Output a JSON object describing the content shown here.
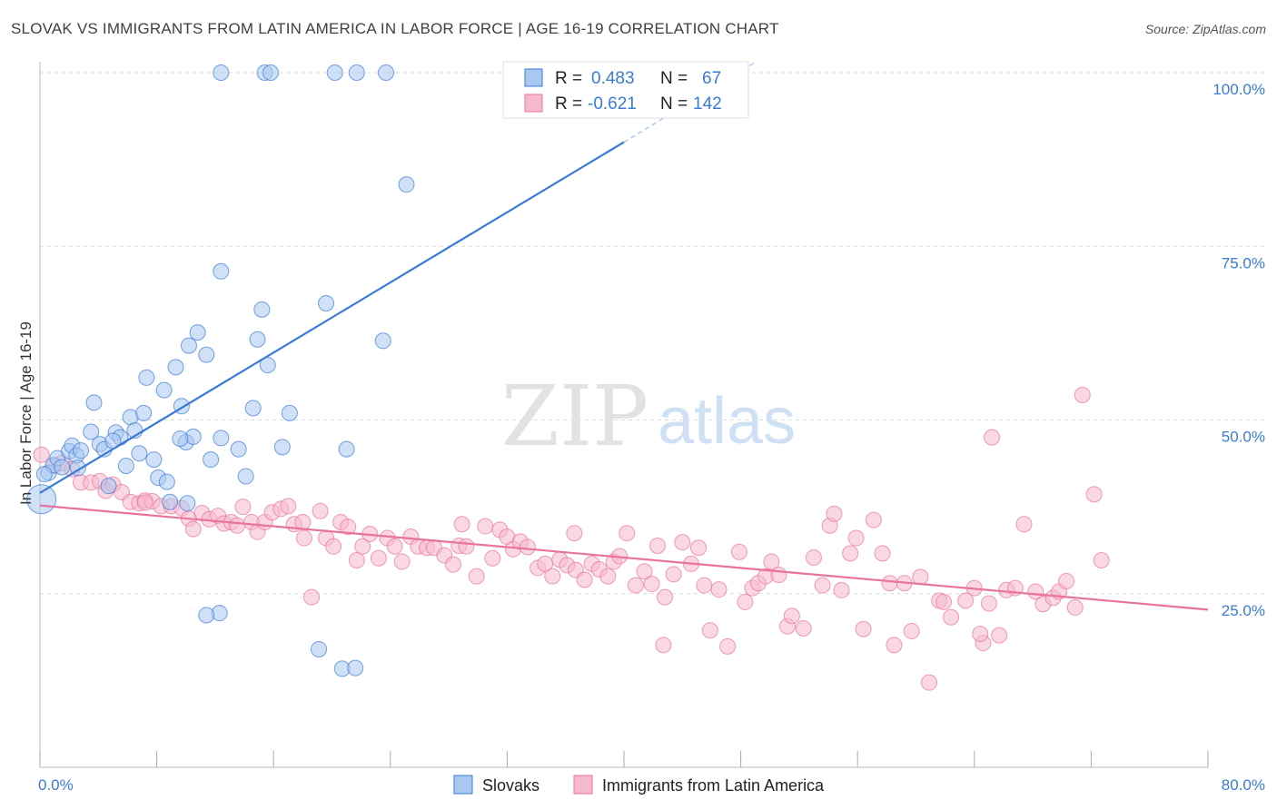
{
  "title": "SLOVAK VS IMMIGRANTS FROM LATIN AMERICA IN LABOR FORCE | AGE 16-19 CORRELATION CHART",
  "source": "Source: ZipAtlas.com",
  "watermark": {
    "zip": "ZIP",
    "atlas": "atlas"
  },
  "colors": {
    "blue": "#3a7bd5",
    "blue_fill": "#a9c8f0",
    "pink": "#e8739c",
    "pink_fill": "#f6b8cc",
    "grid": "#dcdcdc"
  },
  "chart_data": {
    "type": "scatter",
    "title": "SLOVAK VS IMMIGRANTS FROM LATIN AMERICA IN LABOR FORCE | AGE 16-19 CORRELATION CHART",
    "xlabel": "",
    "ylabel": "In Labor Force | Age 16-19",
    "xlim": [
      0,
      80
    ],
    "ylim": [
      0,
      105
    ],
    "x_tick_labels": [
      "0.0%",
      "80.0%"
    ],
    "y_ticks": [
      25,
      50,
      75,
      100
    ],
    "y_tick_labels": [
      "25.0%",
      "50.0%",
      "75.0%",
      "100.0%"
    ],
    "grid": true,
    "legend": {
      "placement": "top-center",
      "entries": [
        {
          "r_label": "R =",
          "r_value": "0.483",
          "n_label": "N =",
          "n_value": "67"
        },
        {
          "r_label": "R =",
          "r_value": "-0.621",
          "n_label": "N =",
          "n_value": "142"
        }
      ]
    },
    "series": [
      {
        "name": "Slovaks",
        "color": "#3a7bd5",
        "trend": {
          "x": [
            0,
            40
          ],
          "y": [
            39.5,
            90.0
          ],
          "dashed_to": [
            49,
            101.5
          ]
        },
        "points": [
          [
            0.1,
            38.6
          ],
          [
            0.6,
            42.4
          ],
          [
            0.9,
            43.5
          ],
          [
            1.2,
            44.5
          ],
          [
            1.5,
            43.2
          ],
          [
            2.0,
            45.5
          ],
          [
            2.2,
            46.3
          ],
          [
            2.5,
            44.9
          ],
          [
            2.8,
            45.6
          ],
          [
            3.5,
            48.3
          ],
          [
            3.7,
            52.5
          ],
          [
            4.1,
            46.5
          ],
          [
            4.4,
            45.8
          ],
          [
            4.7,
            40.5
          ],
          [
            5.2,
            48.2
          ],
          [
            5.5,
            47.5
          ],
          [
            6.2,
            50.4
          ],
          [
            5.9,
            43.4
          ],
          [
            6.5,
            48.5
          ],
          [
            6.8,
            45.2
          ],
          [
            7.1,
            51.0
          ],
          [
            7.3,
            56.1
          ],
          [
            7.8,
            44.3
          ],
          [
            8.1,
            41.7
          ],
          [
            8.5,
            54.3
          ],
          [
            8.7,
            41.1
          ],
          [
            8.9,
            38.2
          ],
          [
            9.3,
            57.6
          ],
          [
            9.7,
            52.0
          ],
          [
            10.0,
            46.8
          ],
          [
            10.2,
            60.7
          ],
          [
            10.5,
            47.6
          ],
          [
            10.8,
            62.6
          ],
          [
            11.4,
            59.4
          ],
          [
            11.7,
            44.3
          ],
          [
            12.4,
            71.4
          ],
          [
            12.3,
            22.2
          ],
          [
            13.6,
            45.8
          ],
          [
            14.1,
            41.9
          ],
          [
            14.6,
            51.7
          ],
          [
            14.9,
            61.6
          ],
          [
            15.2,
            65.9
          ],
          [
            15.6,
            57.9
          ],
          [
            16.6,
            46.1
          ],
          [
            17.1,
            51.0
          ],
          [
            11.4,
            21.9
          ],
          [
            19.6,
            66.8
          ],
          [
            19.1,
            17.0
          ],
          [
            20.7,
            14.2
          ],
          [
            21.0,
            45.8
          ],
          [
            21.6,
            14.3
          ],
          [
            23.5,
            61.4
          ],
          [
            25.1,
            83.9
          ],
          [
            12.4,
            100.0
          ],
          [
            15.4,
            100.0
          ],
          [
            15.8,
            100.0
          ],
          [
            20.2,
            100.0
          ],
          [
            21.7,
            100.0
          ],
          [
            23.7,
            100.0
          ],
          [
            38.1,
            94.6
          ],
          [
            38.7,
            100.0
          ],
          [
            9.6,
            47.3
          ],
          [
            2.6,
            43.1
          ],
          [
            0.3,
            42.2
          ],
          [
            12.4,
            47.4
          ],
          [
            10.1,
            38.0
          ],
          [
            5.0,
            47.0
          ]
        ]
      },
      {
        "name": "Immigrants from Latin America",
        "color": "#e8739c",
        "trend": {
          "x": [
            0,
            80
          ],
          "y": [
            37.7,
            22.7
          ]
        },
        "points": [
          [
            0.1,
            45.0
          ],
          [
            1.0,
            43.4
          ],
          [
            1.5,
            43.8
          ],
          [
            2.2,
            42.9
          ],
          [
            2.8,
            41.0
          ],
          [
            3.5,
            41.0
          ],
          [
            4.1,
            41.2
          ],
          [
            4.5,
            39.8
          ],
          [
            5.0,
            40.7
          ],
          [
            5.6,
            39.6
          ],
          [
            6.2,
            38.2
          ],
          [
            6.8,
            38.0
          ],
          [
            7.2,
            38.4
          ],
          [
            7.7,
            38.3
          ],
          [
            8.3,
            37.6
          ],
          [
            9.0,
            37.6
          ],
          [
            9.7,
            37.3
          ],
          [
            10.2,
            35.8
          ],
          [
            10.5,
            34.3
          ],
          [
            11.1,
            36.6
          ],
          [
            11.6,
            35.7
          ],
          [
            12.2,
            36.2
          ],
          [
            12.6,
            35.1
          ],
          [
            13.1,
            35.3
          ],
          [
            13.5,
            34.8
          ],
          [
            13.9,
            37.5
          ],
          [
            14.5,
            35.3
          ],
          [
            14.9,
            33.9
          ],
          [
            15.4,
            35.3
          ],
          [
            15.9,
            36.7
          ],
          [
            16.5,
            37.2
          ],
          [
            17.0,
            37.6
          ],
          [
            17.4,
            35.0
          ],
          [
            18.0,
            35.3
          ],
          [
            18.6,
            24.5
          ],
          [
            19.2,
            36.9
          ],
          [
            19.6,
            33.0
          ],
          [
            20.1,
            31.8
          ],
          [
            20.6,
            35.3
          ],
          [
            21.1,
            34.6
          ],
          [
            21.7,
            29.8
          ],
          [
            22.1,
            31.8
          ],
          [
            22.6,
            33.6
          ],
          [
            23.2,
            30.1
          ],
          [
            23.8,
            33.0
          ],
          [
            24.3,
            31.8
          ],
          [
            24.8,
            29.6
          ],
          [
            25.4,
            33.2
          ],
          [
            25.9,
            31.8
          ],
          [
            26.5,
            31.6
          ],
          [
            27.0,
            31.6
          ],
          [
            27.7,
            30.5
          ],
          [
            28.3,
            29.2
          ],
          [
            28.7,
            31.9
          ],
          [
            29.2,
            31.8
          ],
          [
            29.9,
            27.5
          ],
          [
            30.5,
            34.7
          ],
          [
            31.0,
            30.1
          ],
          [
            31.5,
            34.2
          ],
          [
            32.0,
            33.2
          ],
          [
            32.4,
            31.4
          ],
          [
            32.9,
            32.5
          ],
          [
            33.4,
            31.7
          ],
          [
            34.1,
            28.7
          ],
          [
            34.6,
            29.3
          ],
          [
            35.1,
            27.5
          ],
          [
            35.6,
            29.9
          ],
          [
            36.1,
            29.1
          ],
          [
            36.7,
            28.4
          ],
          [
            37.3,
            27.0
          ],
          [
            37.8,
            29.3
          ],
          [
            38.3,
            28.5
          ],
          [
            38.9,
            27.5
          ],
          [
            39.3,
            29.6
          ],
          [
            39.7,
            30.4
          ],
          [
            40.2,
            33.7
          ],
          [
            40.8,
            26.2
          ],
          [
            41.4,
            28.2
          ],
          [
            41.9,
            26.4
          ],
          [
            42.3,
            31.9
          ],
          [
            42.8,
            24.5
          ],
          [
            43.4,
            27.8
          ],
          [
            44.0,
            32.4
          ],
          [
            44.6,
            29.3
          ],
          [
            45.1,
            31.6
          ],
          [
            45.5,
            26.2
          ],
          [
            45.9,
            19.7
          ],
          [
            46.5,
            25.6
          ],
          [
            47.1,
            17.4
          ],
          [
            47.9,
            31.0
          ],
          [
            48.3,
            23.8
          ],
          [
            48.8,
            25.8
          ],
          [
            49.2,
            26.5
          ],
          [
            49.7,
            27.5
          ],
          [
            50.1,
            29.6
          ],
          [
            50.6,
            27.7
          ],
          [
            51.2,
            20.3
          ],
          [
            51.5,
            21.8
          ],
          [
            52.3,
            20.0
          ],
          [
            53.0,
            30.2
          ],
          [
            53.6,
            26.2
          ],
          [
            54.1,
            34.8
          ],
          [
            54.4,
            36.5
          ],
          [
            54.9,
            25.5
          ],
          [
            55.5,
            30.8
          ],
          [
            55.9,
            33.0
          ],
          [
            56.4,
            19.9
          ],
          [
            57.1,
            35.6
          ],
          [
            57.7,
            30.8
          ],
          [
            58.2,
            26.5
          ],
          [
            58.5,
            17.6
          ],
          [
            59.2,
            26.5
          ],
          [
            59.7,
            19.6
          ],
          [
            60.3,
            27.4
          ],
          [
            60.9,
            12.2
          ],
          [
            61.6,
            24.0
          ],
          [
            61.9,
            23.8
          ],
          [
            62.4,
            21.6
          ],
          [
            63.4,
            24.0
          ],
          [
            64.0,
            25.8
          ],
          [
            64.6,
            17.9
          ],
          [
            65.0,
            23.6
          ],
          [
            65.7,
            19.0
          ],
          [
            66.2,
            25.5
          ],
          [
            66.8,
            25.8
          ],
          [
            67.4,
            35.0
          ],
          [
            68.2,
            25.3
          ],
          [
            68.7,
            23.5
          ],
          [
            69.4,
            24.4
          ],
          [
            69.8,
            25.3
          ],
          [
            70.3,
            26.8
          ],
          [
            70.9,
            23.0
          ],
          [
            71.4,
            53.6
          ],
          [
            72.2,
            39.3
          ],
          [
            72.7,
            29.8
          ],
          [
            64.4,
            19.2
          ],
          [
            65.2,
            47.5
          ],
          [
            42.7,
            17.6
          ],
          [
            36.6,
            33.7
          ],
          [
            28.9,
            35.0
          ],
          [
            18.1,
            33.0
          ],
          [
            7.2,
            38.1
          ]
        ]
      }
    ]
  },
  "bottom_legend": {
    "slovaks": "Slovaks",
    "latin": "Immigrants from Latin America"
  }
}
